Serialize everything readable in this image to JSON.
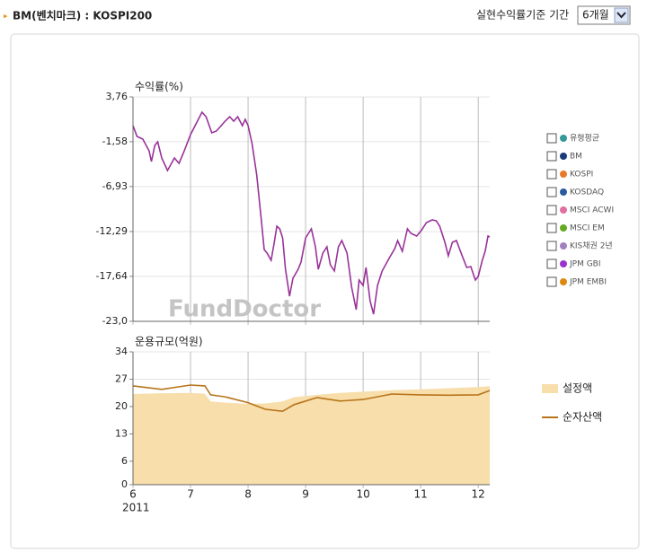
{
  "header": {
    "title": "BM(벤치마크) : KOSPI200",
    "period_label": "실현수익률기준 기간",
    "period_select": "6개월"
  },
  "chart_data": [
    {
      "type": "line",
      "ylabel": "수익률(%)",
      "watermark": "FundDoctor",
      "sharex": true,
      "ylim": [
        -23.0,
        3.76
      ],
      "yticks": [
        {
          "value": 3.76,
          "label": "3,76"
        },
        {
          "value": -1.58,
          "label": "-1,58"
        },
        {
          "value": -6.93,
          "label": "-6,93"
        },
        {
          "value": -12.29,
          "label": "-12,29"
        },
        {
          "value": -17.64,
          "label": "-17,64"
        },
        {
          "value": -23.0,
          "label": "-23,0"
        }
      ],
      "x": [
        6.0,
        6.07,
        6.17,
        6.28,
        6.32,
        6.38,
        6.43,
        6.5,
        6.6,
        6.72,
        6.8,
        6.88,
        7.0,
        7.12,
        7.2,
        7.27,
        7.37,
        7.45,
        7.6,
        7.68,
        7.75,
        7.82,
        7.9,
        7.95,
        8.0,
        8.07,
        8.15,
        8.23,
        8.28,
        8.33,
        8.4,
        8.45,
        8.5,
        8.55,
        8.6,
        8.65,
        8.72,
        8.78,
        8.87,
        8.92,
        9.0,
        9.1,
        9.17,
        9.22,
        9.3,
        9.37,
        9.43,
        9.5,
        9.57,
        9.63,
        9.72,
        9.8,
        9.88,
        9.93,
        10.0,
        10.05,
        10.12,
        10.18,
        10.25,
        10.33,
        10.45,
        10.55,
        10.6,
        10.68,
        10.77,
        10.83,
        10.93,
        11.02,
        11.1,
        11.2,
        11.27,
        11.33,
        11.42,
        11.48,
        11.55,
        11.62,
        11.72,
        11.8,
        11.87,
        11.95,
        12.0,
        12.07,
        12.12,
        12.17,
        12.2
      ],
      "series": [
        {
          "color": "#993399",
          "values": [
            0.33,
            -0.95,
            -1.27,
            -2.66,
            -3.95,
            -2.02,
            -1.59,
            -3.52,
            -5.02,
            -3.52,
            -4.16,
            -2.88,
            -0.74,
            0.87,
            1.94,
            1.41,
            -0.52,
            -0.31,
            0.87,
            1.41,
            0.87,
            1.41,
            0.33,
            1.08,
            0.33,
            -1.81,
            -5.55,
            -10.9,
            -14.44,
            -14.86,
            -15.72,
            -13.79,
            -11.65,
            -11.97,
            -13.05,
            -16.79,
            -20.0,
            -17.86,
            -16.79,
            -15.94,
            -13.05,
            -11.97,
            -14.12,
            -16.79,
            -14.86,
            -14.12,
            -16.26,
            -17.0,
            -14.12,
            -13.37,
            -14.86,
            -18.93,
            -21.61,
            -18.08,
            -18.72,
            -16.58,
            -20.54,
            -22.14,
            -18.72,
            -17.0,
            -15.51,
            -14.33,
            -13.37,
            -14.65,
            -11.97,
            -12.51,
            -12.83,
            -12.08,
            -11.23,
            -10.9,
            -11.01,
            -11.65,
            -13.58,
            -15.19,
            -13.58,
            -13.37,
            -15.19,
            -16.58,
            -16.47,
            -18.08,
            -17.65,
            -15.72,
            -14.65,
            -12.83,
            -12.94
          ]
        }
      ],
      "legend_options": [
        {
          "name": "유형평균",
          "color": "#339999"
        },
        {
          "name": "BM",
          "color": "#1a3a7a"
        },
        {
          "name": "KOSPI",
          "color": "#e87a2a"
        },
        {
          "name": "KOSDAQ",
          "color": "#2a5aa0"
        },
        {
          "name": "MSCI ACWI",
          "color": "#e070a0"
        },
        {
          "name": "MSCI EM",
          "color": "#66aa22"
        },
        {
          "name": "KIS채권 2년",
          "color": "#a080c0"
        },
        {
          "name": "JPM GBI",
          "color": "#9933cc"
        },
        {
          "name": "JPM EMBI",
          "color": "#dd8811"
        }
      ]
    },
    {
      "type": "line",
      "ylabel": "운용규모(억원)",
      "x_annotation": "2011",
      "ylim": [
        0,
        34
      ],
      "yticks": [
        0,
        6,
        13,
        20,
        27,
        34
      ],
      "xlim": [
        6,
        12.2
      ],
      "xticks": [
        6,
        7,
        8,
        9,
        10,
        11,
        12
      ],
      "x": [
        6.0,
        6.5,
        7.0,
        7.25,
        7.35,
        7.6,
        8.0,
        8.3,
        8.6,
        8.8,
        9.2,
        9.6,
        10.0,
        10.5,
        11.0,
        11.5,
        12.0,
        12.2
      ],
      "series": [
        {
          "name": "설정액",
          "type": "area",
          "color": "#f7deab",
          "values": [
            23.2,
            23.4,
            23.5,
            23.3,
            21.3,
            21.0,
            20.7,
            20.8,
            21.3,
            22.4,
            23.0,
            23.5,
            23.8,
            24.2,
            24.4,
            24.7,
            25.0,
            25.2
          ]
        },
        {
          "name": "순자산액",
          "type": "line",
          "color": "#b8741a",
          "values": [
            25.3,
            24.4,
            25.5,
            25.3,
            23.0,
            22.5,
            21.0,
            19.3,
            18.8,
            20.5,
            22.3,
            21.4,
            21.8,
            23.2,
            23.0,
            22.9,
            23.0,
            24.1
          ]
        }
      ]
    }
  ]
}
